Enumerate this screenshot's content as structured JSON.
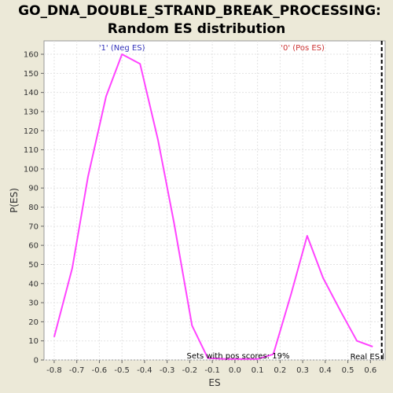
{
  "chart_data": {
    "type": "line",
    "title": "GO_DNA_DOUBLE_STRAND_BREAK_PROCESSING:",
    "subtitle": "Random ES distribution",
    "xlabel": "ES",
    "ylabel": "P(ES)",
    "xlim": [
      -0.845,
      0.665
    ],
    "ylim": [
      0,
      167
    ],
    "x_ticks": [
      -0.8,
      -0.7,
      -0.6,
      -0.5,
      -0.4,
      -0.3,
      -0.2,
      -0.1,
      0.0,
      0.1,
      0.2,
      0.3,
      0.4,
      0.5,
      0.6
    ],
    "y_ticks": [
      0,
      10,
      20,
      30,
      40,
      50,
      60,
      70,
      80,
      90,
      100,
      110,
      120,
      130,
      140,
      150,
      160
    ],
    "grid": true,
    "series": [
      {
        "color": "#ff44ff",
        "x": [
          -0.8,
          -0.72,
          -0.65,
          -0.57,
          -0.5,
          -0.42,
          -0.34,
          -0.27,
          -0.19,
          -0.12,
          -0.04,
          0.03,
          0.1,
          0.17,
          0.25,
          0.32,
          0.39,
          0.47,
          0.54,
          0.61
        ],
        "y": [
          12,
          48,
          96,
          138,
          160,
          155,
          115,
          72,
          18,
          1,
          0.5,
          0.5,
          0.5,
          3,
          35,
          65,
          43,
          25,
          10,
          7
        ]
      }
    ],
    "annotations": {
      "neg_label": "'1' (Neg ES)",
      "neg_label_x": -0.5,
      "neg_color": "#3333bb",
      "pos_label": "'0' (Pos ES)",
      "pos_label_x": 0.3,
      "pos_color": "#cc3333",
      "pos_scores_text": "Sets with pos scores: 19%",
      "real_es_text": "Real ES l",
      "real_es_x": 0.65
    }
  }
}
